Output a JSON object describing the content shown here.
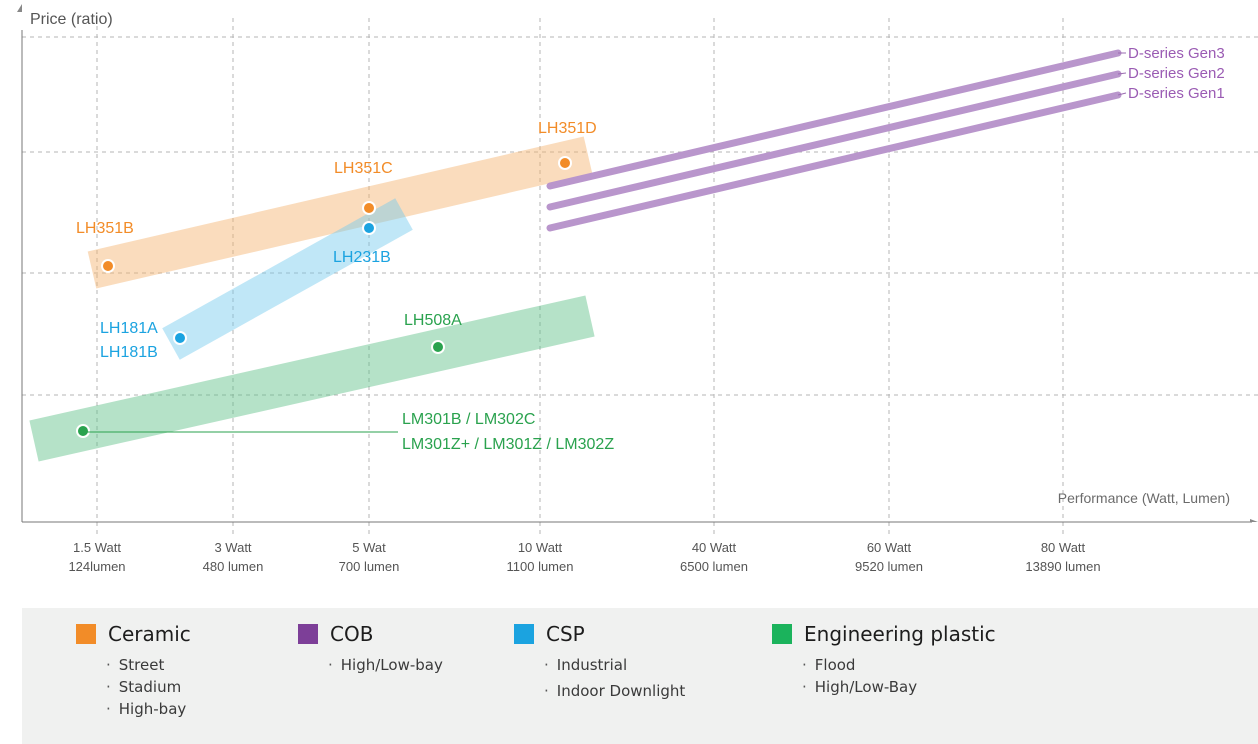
{
  "chart_data": {
    "type": "scatter",
    "y_axis_label": "Price (ratio)",
    "x_axis_label": "Performance (Watt, Lumen)",
    "x_ticks": [
      {
        "watt": "1.5 Watt",
        "lumen": "124lumen"
      },
      {
        "watt": "3 Watt",
        "lumen": "480 lumen"
      },
      {
        "watt": "5 Wat",
        "lumen": "700 lumen"
      },
      {
        "watt": "10 Watt",
        "lumen": "1100 lumen"
      },
      {
        "watt": "40 Watt",
        "lumen": "6500 lumen"
      },
      {
        "watt": "60 Watt",
        "lumen": "9520 lumen"
      },
      {
        "watt": "80 Watt",
        "lumen": "13890 lumen"
      }
    ],
    "series": [
      {
        "name": "Ceramic",
        "color": "#f28c28",
        "points": [
          {
            "label": "LH351B",
            "x": 1.5,
            "y": 2.1
          },
          {
            "label": "LH351C",
            "x": 5,
            "y": 2.55
          },
          {
            "label": "LH351D",
            "x": 10.5,
            "y": 2.85
          }
        ]
      },
      {
        "name": "CSP",
        "color": "#1ba3e0",
        "points": [
          {
            "label": "LH181A / LH181B",
            "x": 3,
            "y": 1.2
          },
          {
            "label": "LH231B",
            "x": 5,
            "y": 2.4
          }
        ]
      },
      {
        "name": "Engineering plastic",
        "color": "#1e9a4a",
        "points": [
          {
            "label": "LH508A",
            "x": 7,
            "y": 1.4
          },
          {
            "label": "LM301B / LM302C / LM301Z+ / LM301Z / LM302Z",
            "x": 1.5,
            "y": 0.7
          }
        ]
      },
      {
        "name": "COB",
        "color": "#b996cc",
        "lines": [
          {
            "label": "D-series Gen3",
            "x0": 10,
            "y0": 2.75,
            "x1": 85,
            "y1": 3.85
          },
          {
            "label": "D-series Gen2",
            "x0": 10,
            "y0": 2.55,
            "x1": 85,
            "y1": 3.65
          },
          {
            "label": "D-series Gen1",
            "x0": 10,
            "y0": 2.35,
            "x1": 85,
            "y1": 3.45
          }
        ]
      }
    ],
    "grid": true
  },
  "legend": [
    {
      "title": "Ceramic",
      "color": "#f28c28",
      "items": [
        "Street",
        "Stadium",
        "High-bay"
      ]
    },
    {
      "title": "COB",
      "color": "#7d3f98",
      "items": [
        "High/Low-bay"
      ]
    },
    {
      "title": "CSP",
      "color": "#1ba3e0",
      "items": [
        "Industrial",
        "Indoor Downlight"
      ]
    },
    {
      "title": "Engineering plastic",
      "color": "#1bb35c",
      "items": [
        "Flood",
        "High/Low-Bay"
      ]
    }
  ]
}
